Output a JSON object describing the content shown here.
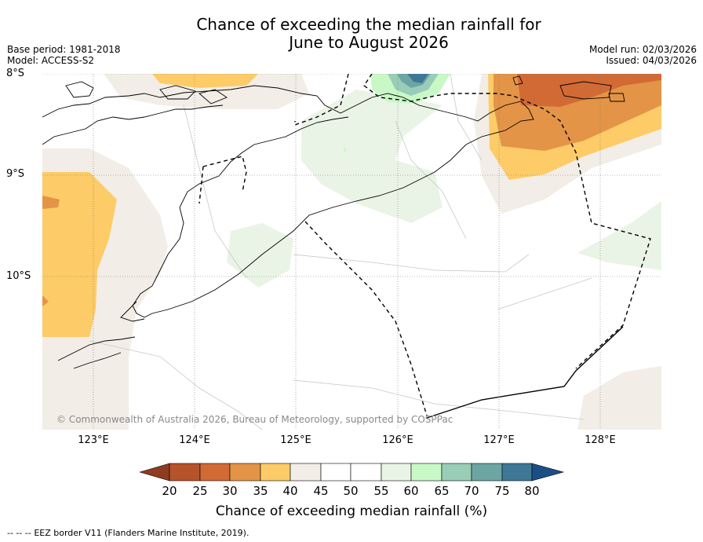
{
  "header": {
    "title_line1": "Chance of exceeding the median rainfall for",
    "title_line2": "June to August 2026",
    "base_period": "Base period: 1981-2018",
    "model": "Model: ACCESS-S2",
    "model_run": "Model run: 02/03/2026",
    "issued": "Issued: 04/03/2026"
  },
  "map": {
    "lat_labels": [
      "8°S",
      "9°S",
      "10°S"
    ],
    "lon_labels": [
      "123°E",
      "124°E",
      "125°E",
      "126°E",
      "127°E",
      "128°E"
    ],
    "copyright": "© Commonwealth of Australia 2026, Bureau of Meteorology, supported by COSPPac",
    "colors": {
      "c20_25": "#b5532a",
      "c25_30": "#d26a35",
      "c30_35": "#e39447",
      "c35_40": "#fdcb67",
      "c40_45": "#f2ede6",
      "c45_55": "#ffffff",
      "c55_60": "#eaf4e6",
      "c60_65": "#c9f8c7",
      "c65_70": "#99cdb8",
      "c70_75": "#6da5a3",
      "c75_80": "#3f7896",
      "c80": "#1c4e86"
    }
  },
  "colorbar": {
    "ticks": [
      "20",
      "25",
      "30",
      "35",
      "40",
      "45",
      "50",
      "55",
      "60",
      "65",
      "70",
      "75",
      "80"
    ],
    "label": "Chance of exceeding median rainfall (%)"
  },
  "footer": {
    "legend_symbol": "-- -- --",
    "eez_note": "EEZ border V11 (Flanders Marine Institute, 2019)."
  }
}
